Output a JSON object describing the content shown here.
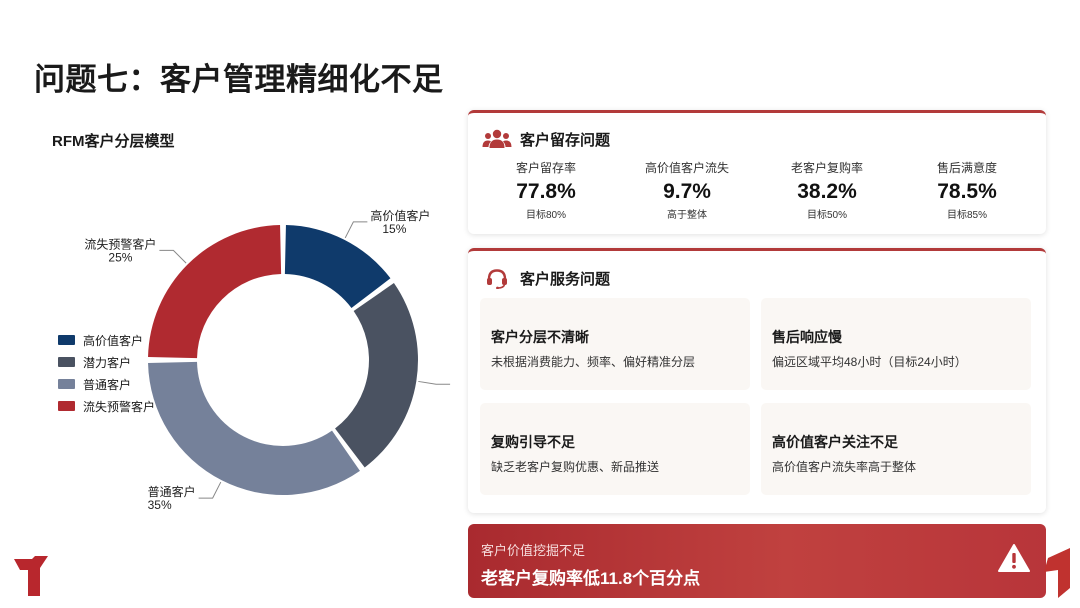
{
  "page": {
    "title": "问题七：客户管理精细化不足"
  },
  "chart_data": {
    "type": "pie",
    "title": "RFM客户分层模型",
    "donut": true,
    "legend_position": "left",
    "slices": [
      {
        "name": "高价值客户",
        "value": 15,
        "label": "15%",
        "color": "#0f3a6b"
      },
      {
        "name": "潜力客户",
        "value": 25,
        "label": "",
        "color": "#4a5261"
      },
      {
        "name": "普通客户",
        "value": 35,
        "label": "35%",
        "color": "#75819a"
      },
      {
        "name": "流失预警客户",
        "value": 25,
        "label": "25%",
        "color": "#b02a30"
      }
    ]
  },
  "retention": {
    "title": "客户留存问题",
    "icon": "users-icon",
    "metrics": [
      {
        "label": "客户留存率",
        "value": "77.8%",
        "sub": "目标80%"
      },
      {
        "label": "高价值客户流失",
        "value": "9.7%",
        "sub": "高于整体"
      },
      {
        "label": "老客户复购率",
        "value": "38.2%",
        "sub": "目标50%"
      },
      {
        "label": "售后满意度",
        "value": "78.5%",
        "sub": "目标85%"
      }
    ]
  },
  "service": {
    "title": "客户服务问题",
    "icon": "headset-icon",
    "issues": [
      {
        "title": "客户分层不清晰",
        "desc": "未根据消费能力、频率、偏好精准分层"
      },
      {
        "title": "售后响应慢",
        "desc": "偏远区域平均48小时（目标24小时）"
      },
      {
        "title": "复购引导不足",
        "desc": "缺乏老客户复购优惠、新品推送"
      },
      {
        "title": "高价值客户关注不足",
        "desc": "高价值客户流失率高于整体"
      }
    ]
  },
  "banner": {
    "sub": "客户价值挖掘不足",
    "main": "老客户复购率低11.8个百分点",
    "icon": "warning-icon"
  },
  "colors": {
    "accent": "#b23a3a",
    "navy": "#0f3a6b"
  }
}
